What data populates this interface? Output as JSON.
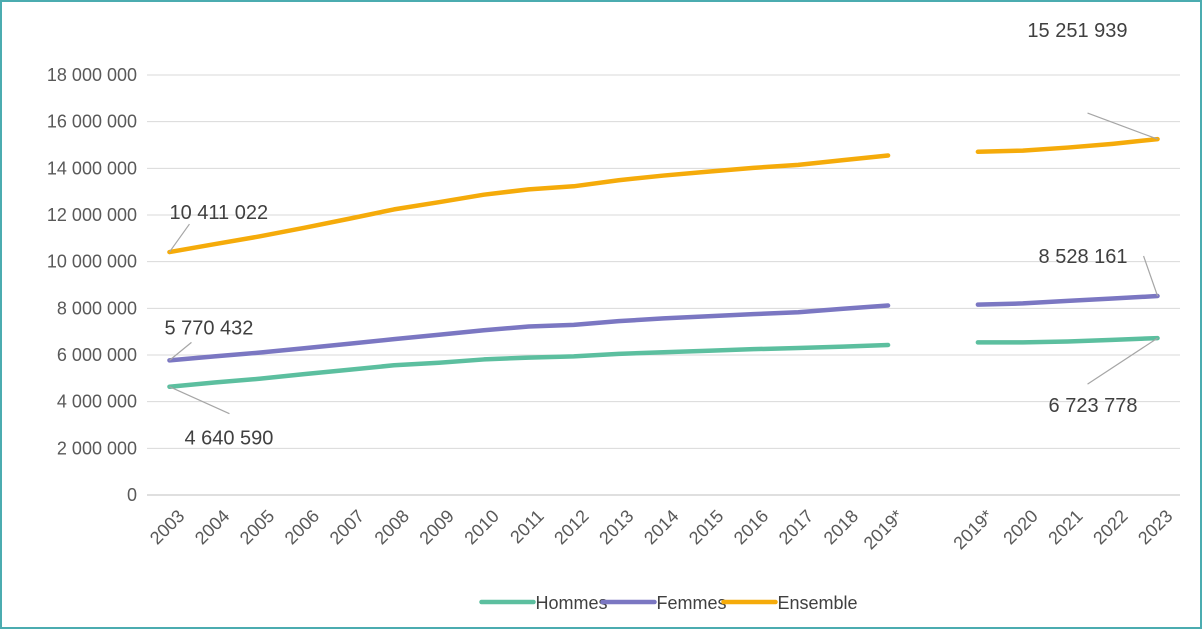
{
  "chart_data": {
    "type": "line",
    "categories": [
      "2003",
      "2004",
      "2005",
      "2006",
      "2007",
      "2008",
      "2009",
      "2010",
      "2011",
      "2012",
      "2013",
      "2014",
      "2015",
      "2016",
      "2017",
      "2018",
      "2019*",
      "",
      "2019*",
      "2020",
      "2021",
      "2022",
      "2023"
    ],
    "series": [
      {
        "name": "Hommes",
        "color": "#5cbf9f",
        "values": [
          4640590,
          4820000,
          4980000,
          5180000,
          5370000,
          5560000,
          5670000,
          5810000,
          5890000,
          5940000,
          6050000,
          6120000,
          6180000,
          6250000,
          6300000,
          6360000,
          6430000,
          null,
          6540000,
          6540000,
          6580000,
          6650000,
          6723778
        ]
      },
      {
        "name": "Femmes",
        "color": "#7b77c2",
        "values": [
          5770432,
          5940000,
          6100000,
          6290000,
          6480000,
          6680000,
          6870000,
          7060000,
          7220000,
          7290000,
          7450000,
          7570000,
          7660000,
          7750000,
          7830000,
          7980000,
          8120000,
          null,
          8160000,
          8210000,
          8320000,
          8420000,
          8528161
        ]
      },
      {
        "name": "Ensemble",
        "color": "#f5ab0a",
        "values": [
          10411022,
          10750000,
          11080000,
          11450000,
          11840000,
          12240000,
          12550000,
          12870000,
          13100000,
          13230000,
          13490000,
          13690000,
          13860000,
          14020000,
          14150000,
          14350000,
          14550000,
          null,
          14710000,
          14760000,
          14890000,
          15050000,
          15251939
        ]
      }
    ],
    "data_labels": [
      {
        "series": "Ensemble",
        "index": 0,
        "text": "10 411 022"
      },
      {
        "series": "Ensemble",
        "index": 22,
        "text": "15 251 939"
      },
      {
        "series": "Femmes",
        "index": 0,
        "text": "5 770 432"
      },
      {
        "series": "Femmes",
        "index": 22,
        "text": "8 528 161"
      },
      {
        "series": "Hommes",
        "index": 0,
        "text": "4 640 590"
      },
      {
        "series": "Hommes",
        "index": 22,
        "text": "6 723 778"
      }
    ],
    "yticks": [
      "0",
      "2 000 000",
      "4 000 000",
      "6 000 000",
      "8 000 000",
      "10 000 000",
      "12 000 000",
      "14 000 000",
      "16 000 000",
      "18 000 000"
    ],
    "ylim": [
      0,
      18000000
    ],
    "grid": true,
    "legend_position": "bottom"
  }
}
